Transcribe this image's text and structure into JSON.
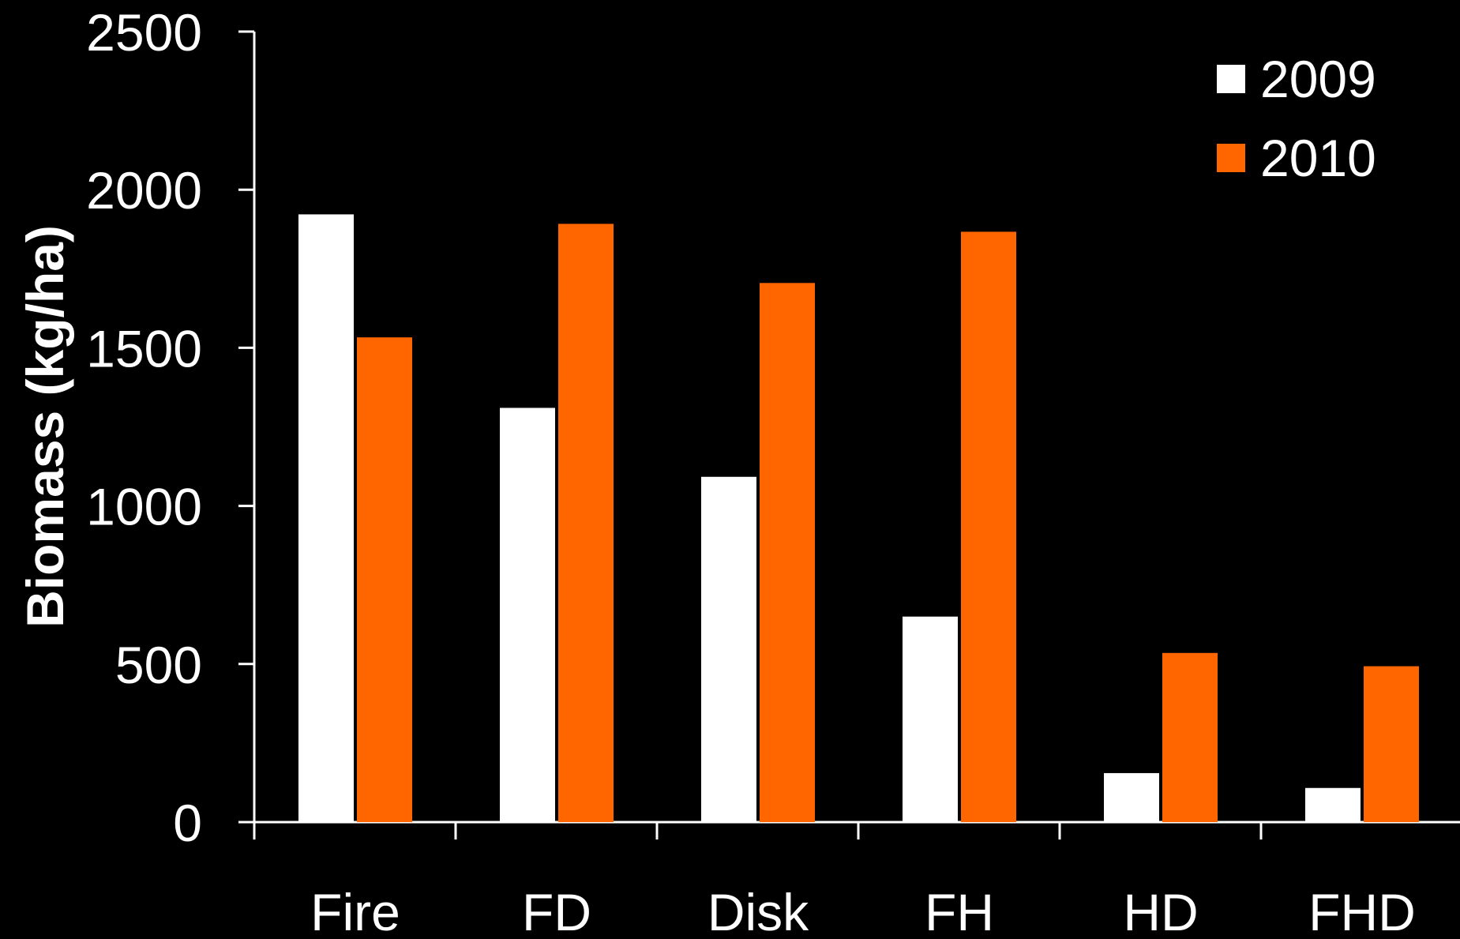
{
  "chart_data": {
    "type": "bar",
    "categories": [
      "Fire",
      "FD",
      "Disk",
      "FH",
      "HD",
      "FHD"
    ],
    "series": [
      {
        "name": "2009",
        "color": "#ffffff",
        "values": [
          1922,
          1310,
          1092,
          650,
          155,
          108
        ]
      },
      {
        "name": "2010",
        "color": "#ff6600",
        "values": [
          1533,
          1892,
          1705,
          1867,
          535,
          493
        ]
      }
    ],
    "title": "",
    "xlabel": "",
    "ylabel": "Biomass (kg/ha)",
    "ylim": [
      0,
      2500
    ],
    "yticks": [
      "0",
      "500",
      "1000",
      "1500",
      "2000",
      "2500"
    ],
    "grid": false,
    "legend_position": "top-right",
    "background": "#000000",
    "foreground": "#ffffff"
  }
}
